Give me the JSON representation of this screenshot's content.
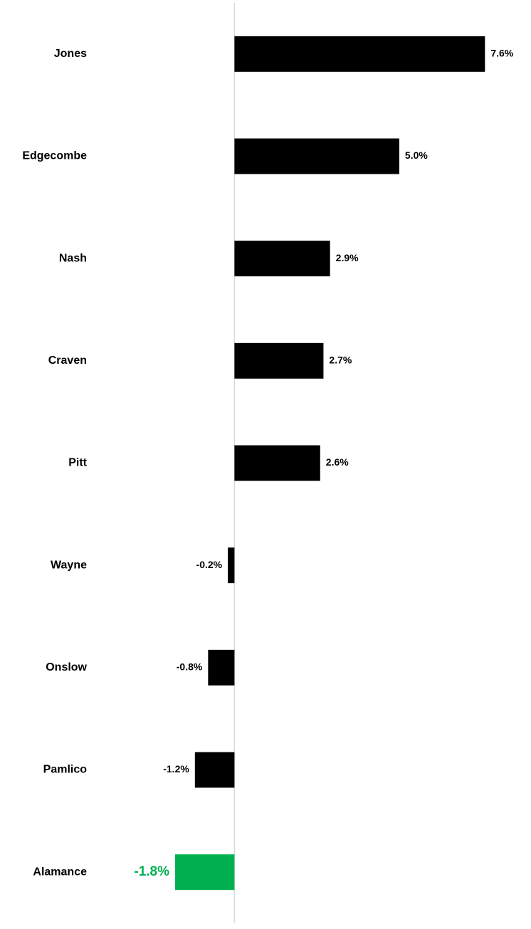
{
  "chart_data": {
    "type": "bar",
    "orientation": "horizontal",
    "categories": [
      "Jones",
      "Edgecombe",
      "Nash",
      "Craven",
      "Pitt",
      "Wayne",
      "Onslow",
      "Pamlico",
      "Alamance"
    ],
    "values": [
      7.6,
      5.0,
      2.9,
      2.7,
      2.6,
      -0.2,
      -0.8,
      -1.2,
      -1.8
    ],
    "value_labels": [
      "7.6%",
      "5.0%",
      "2.9%",
      "2.7%",
      "2.6%",
      "-0.2%",
      "-0.8%",
      "-1.2%",
      "-1.8%"
    ],
    "colors": [
      "#000000",
      "#000000",
      "#000000",
      "#000000",
      "#000000",
      "#000000",
      "#000000",
      "#000000",
      "#00b050"
    ],
    "xlim": [
      -4.5,
      8.5
    ]
  }
}
